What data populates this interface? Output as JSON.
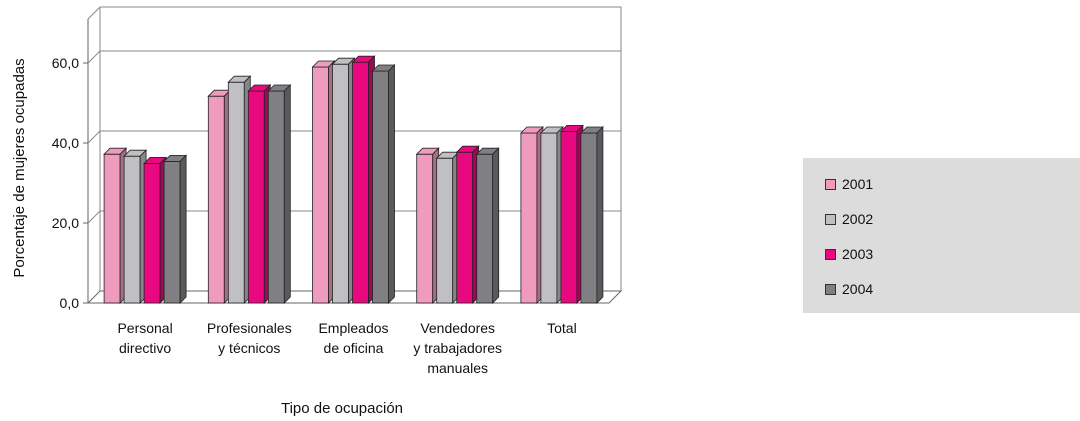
{
  "chart_data": {
    "type": "bar",
    "ylabel": "Porcentaje de mujeres ocupadas",
    "xlabel": "Tipo de ocupación",
    "ylim": [
      0,
      60
    ],
    "yticks": [
      "0,0",
      "20,0",
      "40,0",
      "60,0"
    ],
    "ytick_values": [
      0,
      20,
      40,
      60
    ],
    "categories": [
      [
        "Personal",
        "directivo"
      ],
      [
        "Profesionales",
        "y técnicos"
      ],
      [
        "Empleados",
        "de oficina"
      ],
      [
        "Vendedores",
        "y trabajadores",
        "manuales"
      ],
      [
        "Total"
      ]
    ],
    "series": [
      {
        "name": "2001",
        "color": "#ef9bbd",
        "values": [
          37.2,
          51.7,
          59.0,
          37.2,
          42.5
        ]
      },
      {
        "name": "2002",
        "color": "#c0c0c4",
        "values": [
          36.7,
          55.2,
          59.7,
          36.2,
          42.5
        ]
      },
      {
        "name": "2003",
        "color": "#e8087f",
        "values": [
          34.9,
          53.0,
          60.2,
          37.7,
          42.9
        ]
      },
      {
        "name": "2004",
        "color": "#808084",
        "values": [
          35.4,
          53.0,
          58.0,
          37.2,
          42.5
        ]
      }
    ],
    "grid": true,
    "legend_position": "right"
  }
}
